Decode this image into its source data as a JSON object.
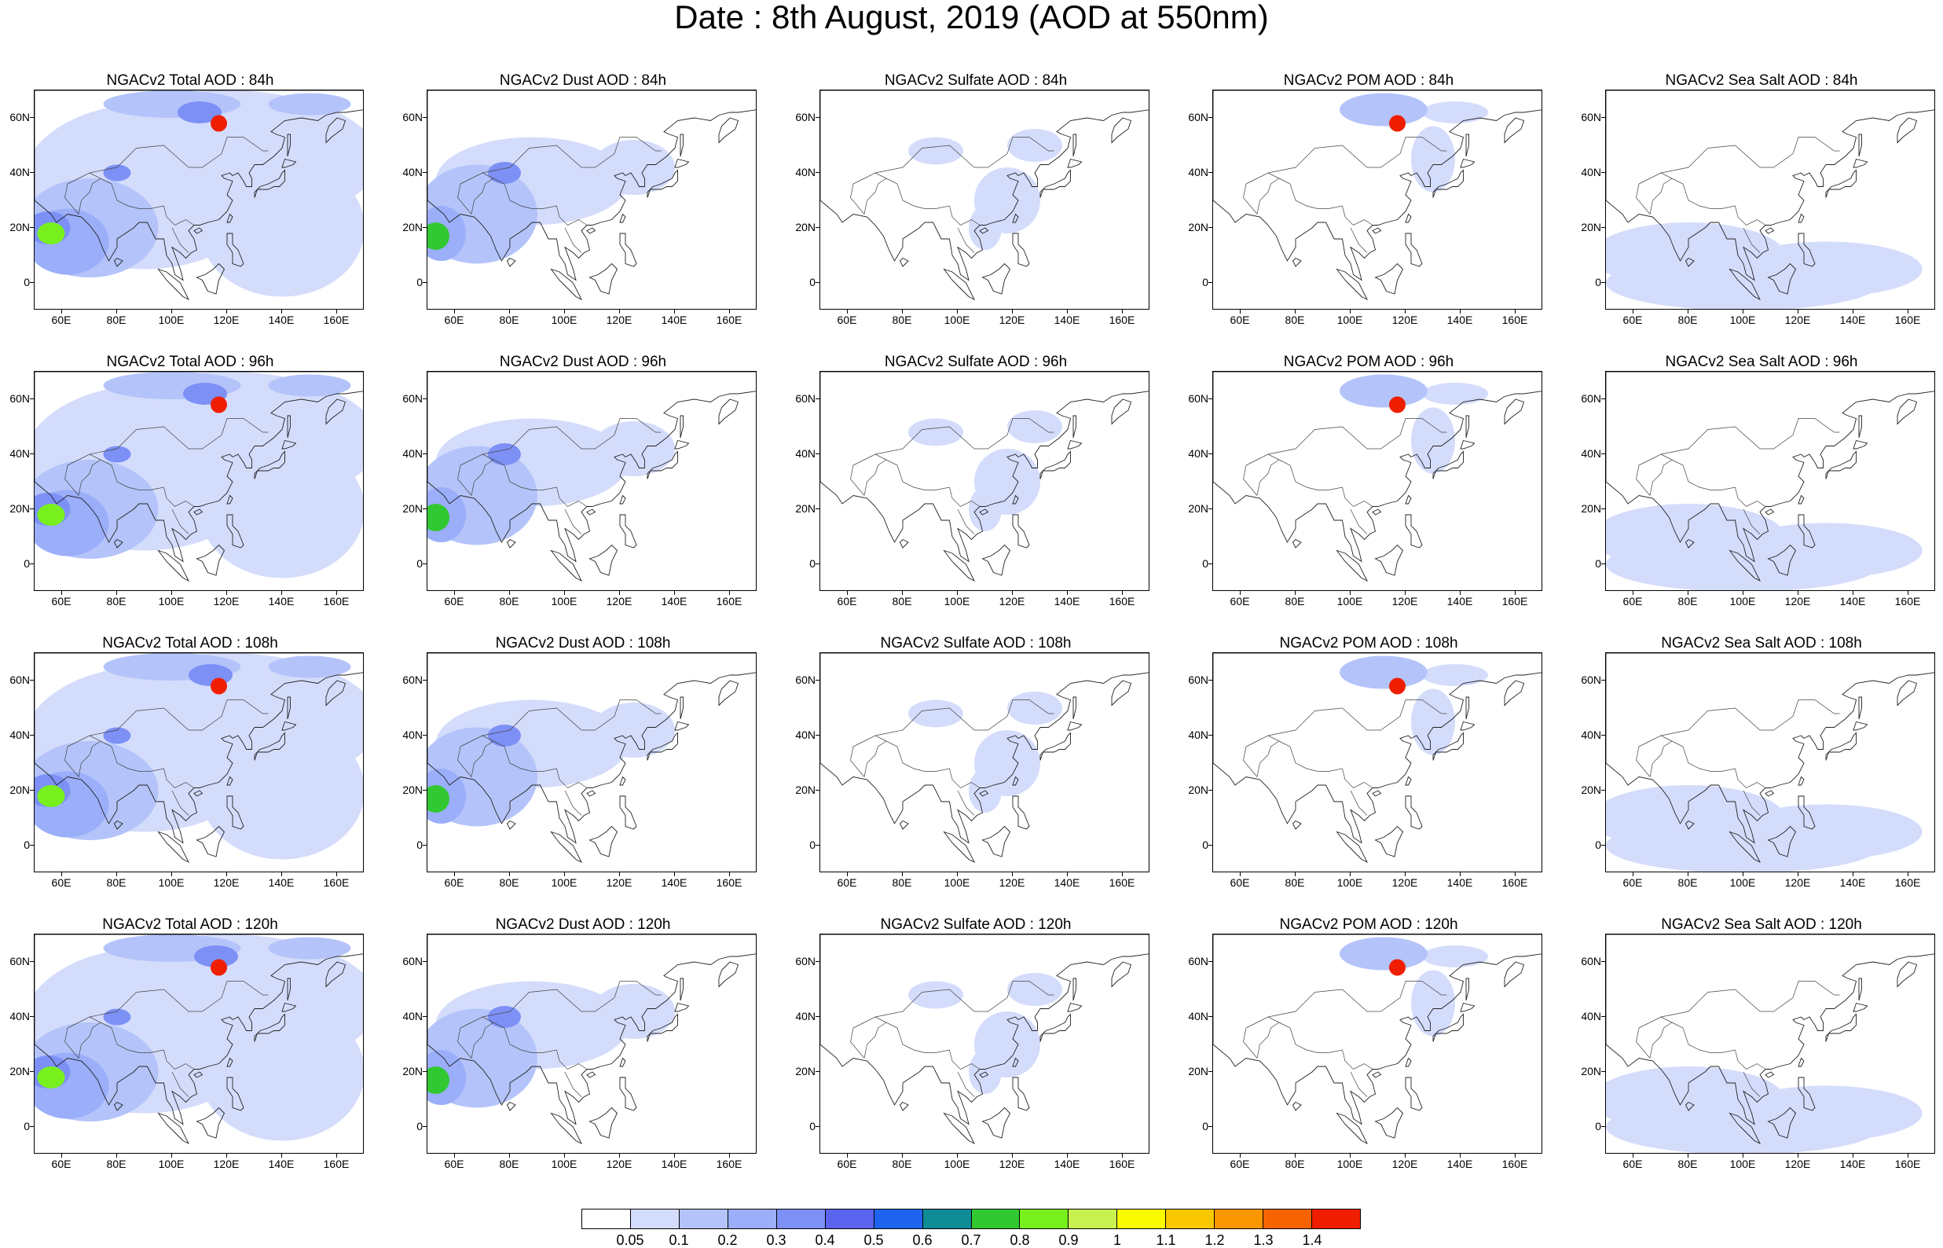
{
  "title": "Date : 8th August, 2019 (AOD at 550nm)",
  "axes": {
    "lat_labels": [
      "60N",
      "40N",
      "20N",
      "0"
    ],
    "lon_labels": [
      "60E",
      "80E",
      "100E",
      "120E",
      "140E",
      "160E"
    ],
    "lat_values": [
      60,
      40,
      20,
      0
    ],
    "lon_values": [
      60,
      80,
      100,
      120,
      140,
      160
    ],
    "lon_range": [
      50,
      170
    ],
    "lat_range": [
      -10,
      70
    ]
  },
  "rows": [
    "84h",
    "96h",
    "108h",
    "120h"
  ],
  "panels": [
    {
      "title": "NGACv2 Total AOD : 84h",
      "species": "total"
    },
    {
      "title": "NGACv2 Dust AOD : 84h",
      "species": "dust"
    },
    {
      "title": "NGACv2 Sulfate AOD : 84h",
      "species": "sulfate"
    },
    {
      "title": "NGACv2 POM AOD : 84h",
      "species": "pom"
    },
    {
      "title": "NGACv2 Sea Salt AOD : 84h",
      "species": "seasalt"
    },
    {
      "title": "NGACv2 Total AOD : 96h",
      "species": "total"
    },
    {
      "title": "NGACv2 Dust AOD : 96h",
      "species": "dust"
    },
    {
      "title": "NGACv2 Sulfate AOD : 96h",
      "species": "sulfate"
    },
    {
      "title": "NGACv2 POM AOD : 96h",
      "species": "pom"
    },
    {
      "title": "NGACv2 Sea Salt AOD : 96h",
      "species": "seasalt"
    },
    {
      "title": "NGACv2 Total AOD : 108h",
      "species": "total"
    },
    {
      "title": "NGACv2 Dust AOD : 108h",
      "species": "dust"
    },
    {
      "title": "NGACv2 Sulfate AOD : 108h",
      "species": "sulfate"
    },
    {
      "title": "NGACv2 POM AOD : 108h",
      "species": "pom"
    },
    {
      "title": "NGACv2 Sea Salt AOD : 108h",
      "species": "seasalt"
    },
    {
      "title": "NGACv2 Total AOD : 120h",
      "species": "total"
    },
    {
      "title": "NGACv2 Dust AOD : 120h",
      "species": "dust"
    },
    {
      "title": "NGACv2 Sulfate AOD : 120h",
      "species": "sulfate"
    },
    {
      "title": "NGACv2 POM AOD : 120h",
      "species": "pom"
    },
    {
      "title": "NGACv2 Sea Salt  AOD : 120h",
      "species": "seasalt"
    }
  ],
  "colorbar": {
    "labels": [
      "0.05",
      "0.1",
      "0.2",
      "0.3",
      "0.4",
      "0.5",
      "0.6",
      "0.7",
      "0.8",
      "0.9",
      "1",
      "1.1",
      "1.2",
      "1.3",
      "1.4"
    ],
    "colors": [
      "#ffffff",
      "#d4dcfc",
      "#b4c4fa",
      "#9aaefa",
      "#7c90f6",
      "#5a64ee",
      "#1e64f0",
      "#108c96",
      "#32c832",
      "#78f01e",
      "#c8f050",
      "#fafa00",
      "#fac800",
      "#fa9600",
      "#f56400",
      "#f01e00"
    ]
  }
}
